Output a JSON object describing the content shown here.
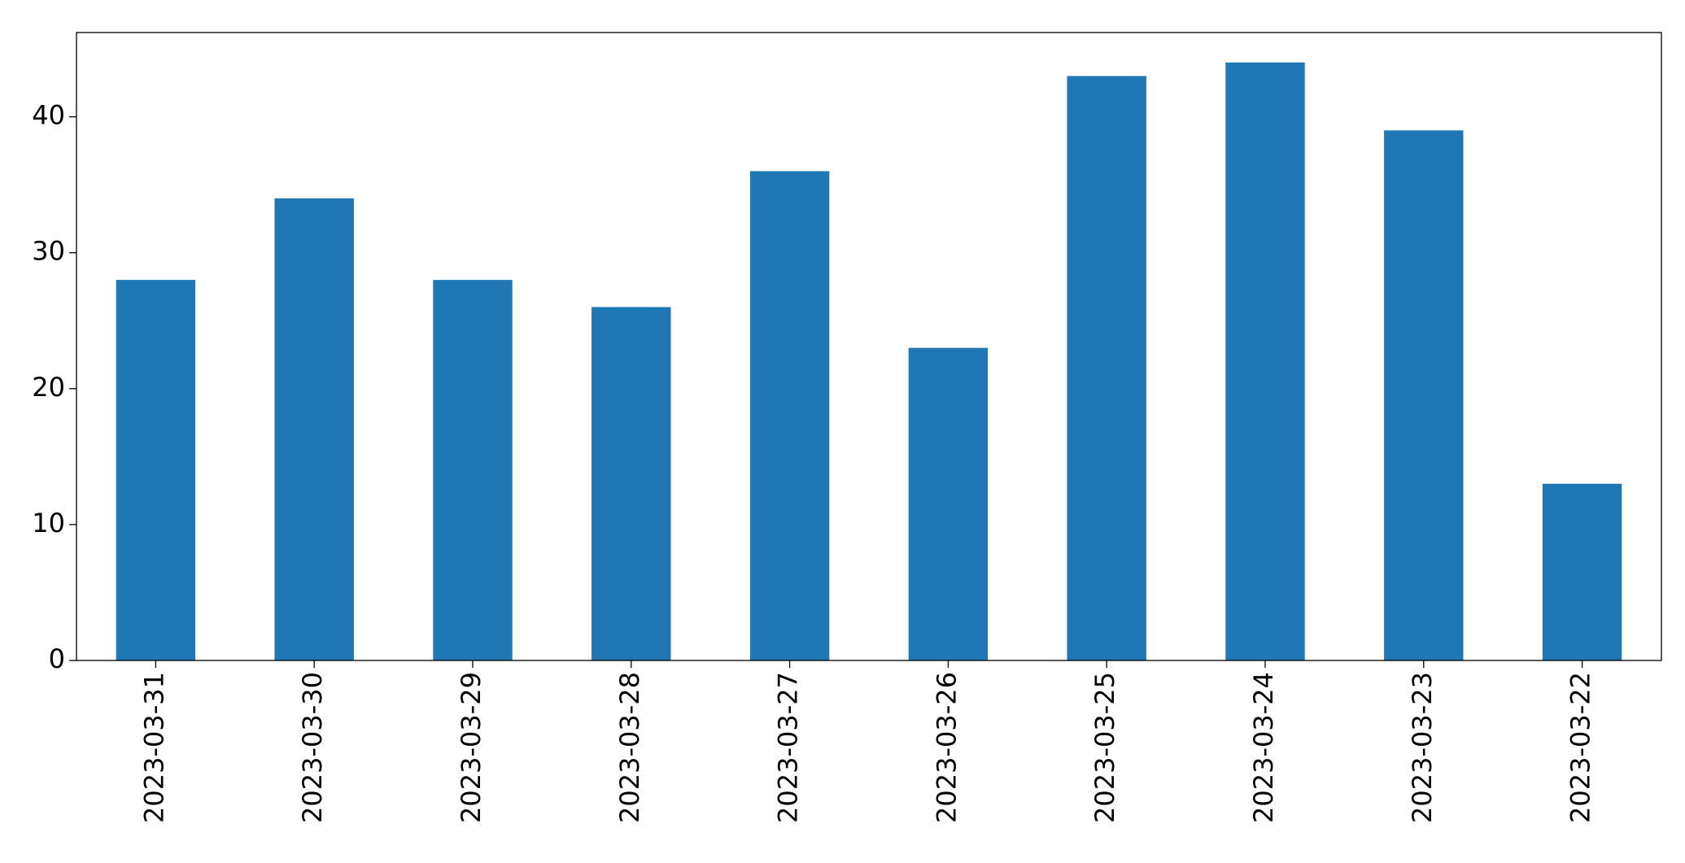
{
  "chart_data": {
    "type": "bar",
    "categories": [
      "2023-03-31",
      "2023-03-30",
      "2023-03-29",
      "2023-03-28",
      "2023-03-27",
      "2023-03-26",
      "2023-03-25",
      "2023-03-24",
      "2023-03-23",
      "2023-03-22"
    ],
    "values": [
      28,
      34,
      28,
      26,
      36,
      23,
      43,
      44,
      39,
      13
    ],
    "color": "#1f77b4",
    "ylim": [
      0,
      46.2
    ],
    "yticks": [
      0,
      10,
      20,
      30,
      40
    ],
    "grid": false
  }
}
